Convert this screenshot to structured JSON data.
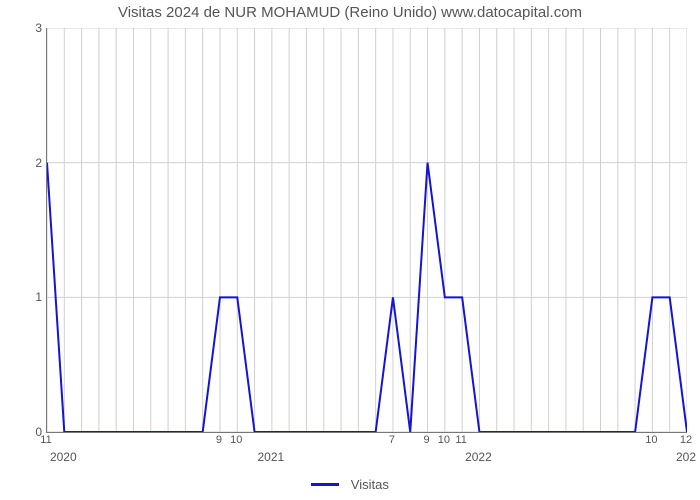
{
  "chart": {
    "type": "line",
    "title": "Visitas 2024 de NUR MOHAMUD (Reino Unido) www.datocapital.com",
    "title_fontsize": 15,
    "title_color": "#555555",
    "background_color": "#ffffff",
    "grid_color": "#d0d0d0",
    "axis_color": "#777777",
    "tick_fontsize": 12,
    "tick_color": "#555555",
    "series_name": "Visitas",
    "series_color": "#1414d2",
    "line_width": 2,
    "legend_position": "bottom-center",
    "ylim": [
      0,
      3
    ],
    "yticks": [
      0,
      1,
      2,
      3
    ],
    "x_domain_months": 37,
    "x_major_ticks": [
      {
        "month_index": 1,
        "label": "2020"
      },
      {
        "month_index": 13,
        "label": "2021"
      },
      {
        "month_index": 25,
        "label": "2022"
      },
      {
        "month_index": 37,
        "label": "202"
      }
    ],
    "x_minor_ticks": [
      {
        "month_index": 0,
        "label": "11"
      },
      {
        "month_index": 10,
        "label": "9"
      },
      {
        "month_index": 11,
        "label": "10"
      },
      {
        "month_index": 20,
        "label": "7"
      },
      {
        "month_index": 22,
        "label": "9"
      },
      {
        "month_index": 23,
        "label": "10"
      },
      {
        "month_index": 24,
        "label": "11"
      },
      {
        "month_index": 35,
        "label": "10"
      },
      {
        "month_index": 37,
        "label": "12"
      }
    ],
    "data": [
      {
        "x": 0,
        "y": 2
      },
      {
        "x": 1,
        "y": 0
      },
      {
        "x": 2,
        "y": 0
      },
      {
        "x": 3,
        "y": 0
      },
      {
        "x": 4,
        "y": 0
      },
      {
        "x": 5,
        "y": 0
      },
      {
        "x": 6,
        "y": 0
      },
      {
        "x": 7,
        "y": 0
      },
      {
        "x": 8,
        "y": 0
      },
      {
        "x": 9,
        "y": 0
      },
      {
        "x": 10,
        "y": 1
      },
      {
        "x": 11,
        "y": 1
      },
      {
        "x": 12,
        "y": 0
      },
      {
        "x": 13,
        "y": 0
      },
      {
        "x": 14,
        "y": 0
      },
      {
        "x": 15,
        "y": 0
      },
      {
        "x": 16,
        "y": 0
      },
      {
        "x": 17,
        "y": 0
      },
      {
        "x": 18,
        "y": 0
      },
      {
        "x": 19,
        "y": 0
      },
      {
        "x": 20,
        "y": 1
      },
      {
        "x": 21,
        "y": 0
      },
      {
        "x": 22,
        "y": 2
      },
      {
        "x": 23,
        "y": 1
      },
      {
        "x": 24,
        "y": 1
      },
      {
        "x": 25,
        "y": 0
      },
      {
        "x": 26,
        "y": 0
      },
      {
        "x": 27,
        "y": 0
      },
      {
        "x": 28,
        "y": 0
      },
      {
        "x": 29,
        "y": 0
      },
      {
        "x": 30,
        "y": 0
      },
      {
        "x": 31,
        "y": 0
      },
      {
        "x": 32,
        "y": 0
      },
      {
        "x": 33,
        "y": 0
      },
      {
        "x": 34,
        "y": 0
      },
      {
        "x": 35,
        "y": 1
      },
      {
        "x": 36,
        "y": 1
      },
      {
        "x": 37,
        "y": 0
      }
    ]
  }
}
